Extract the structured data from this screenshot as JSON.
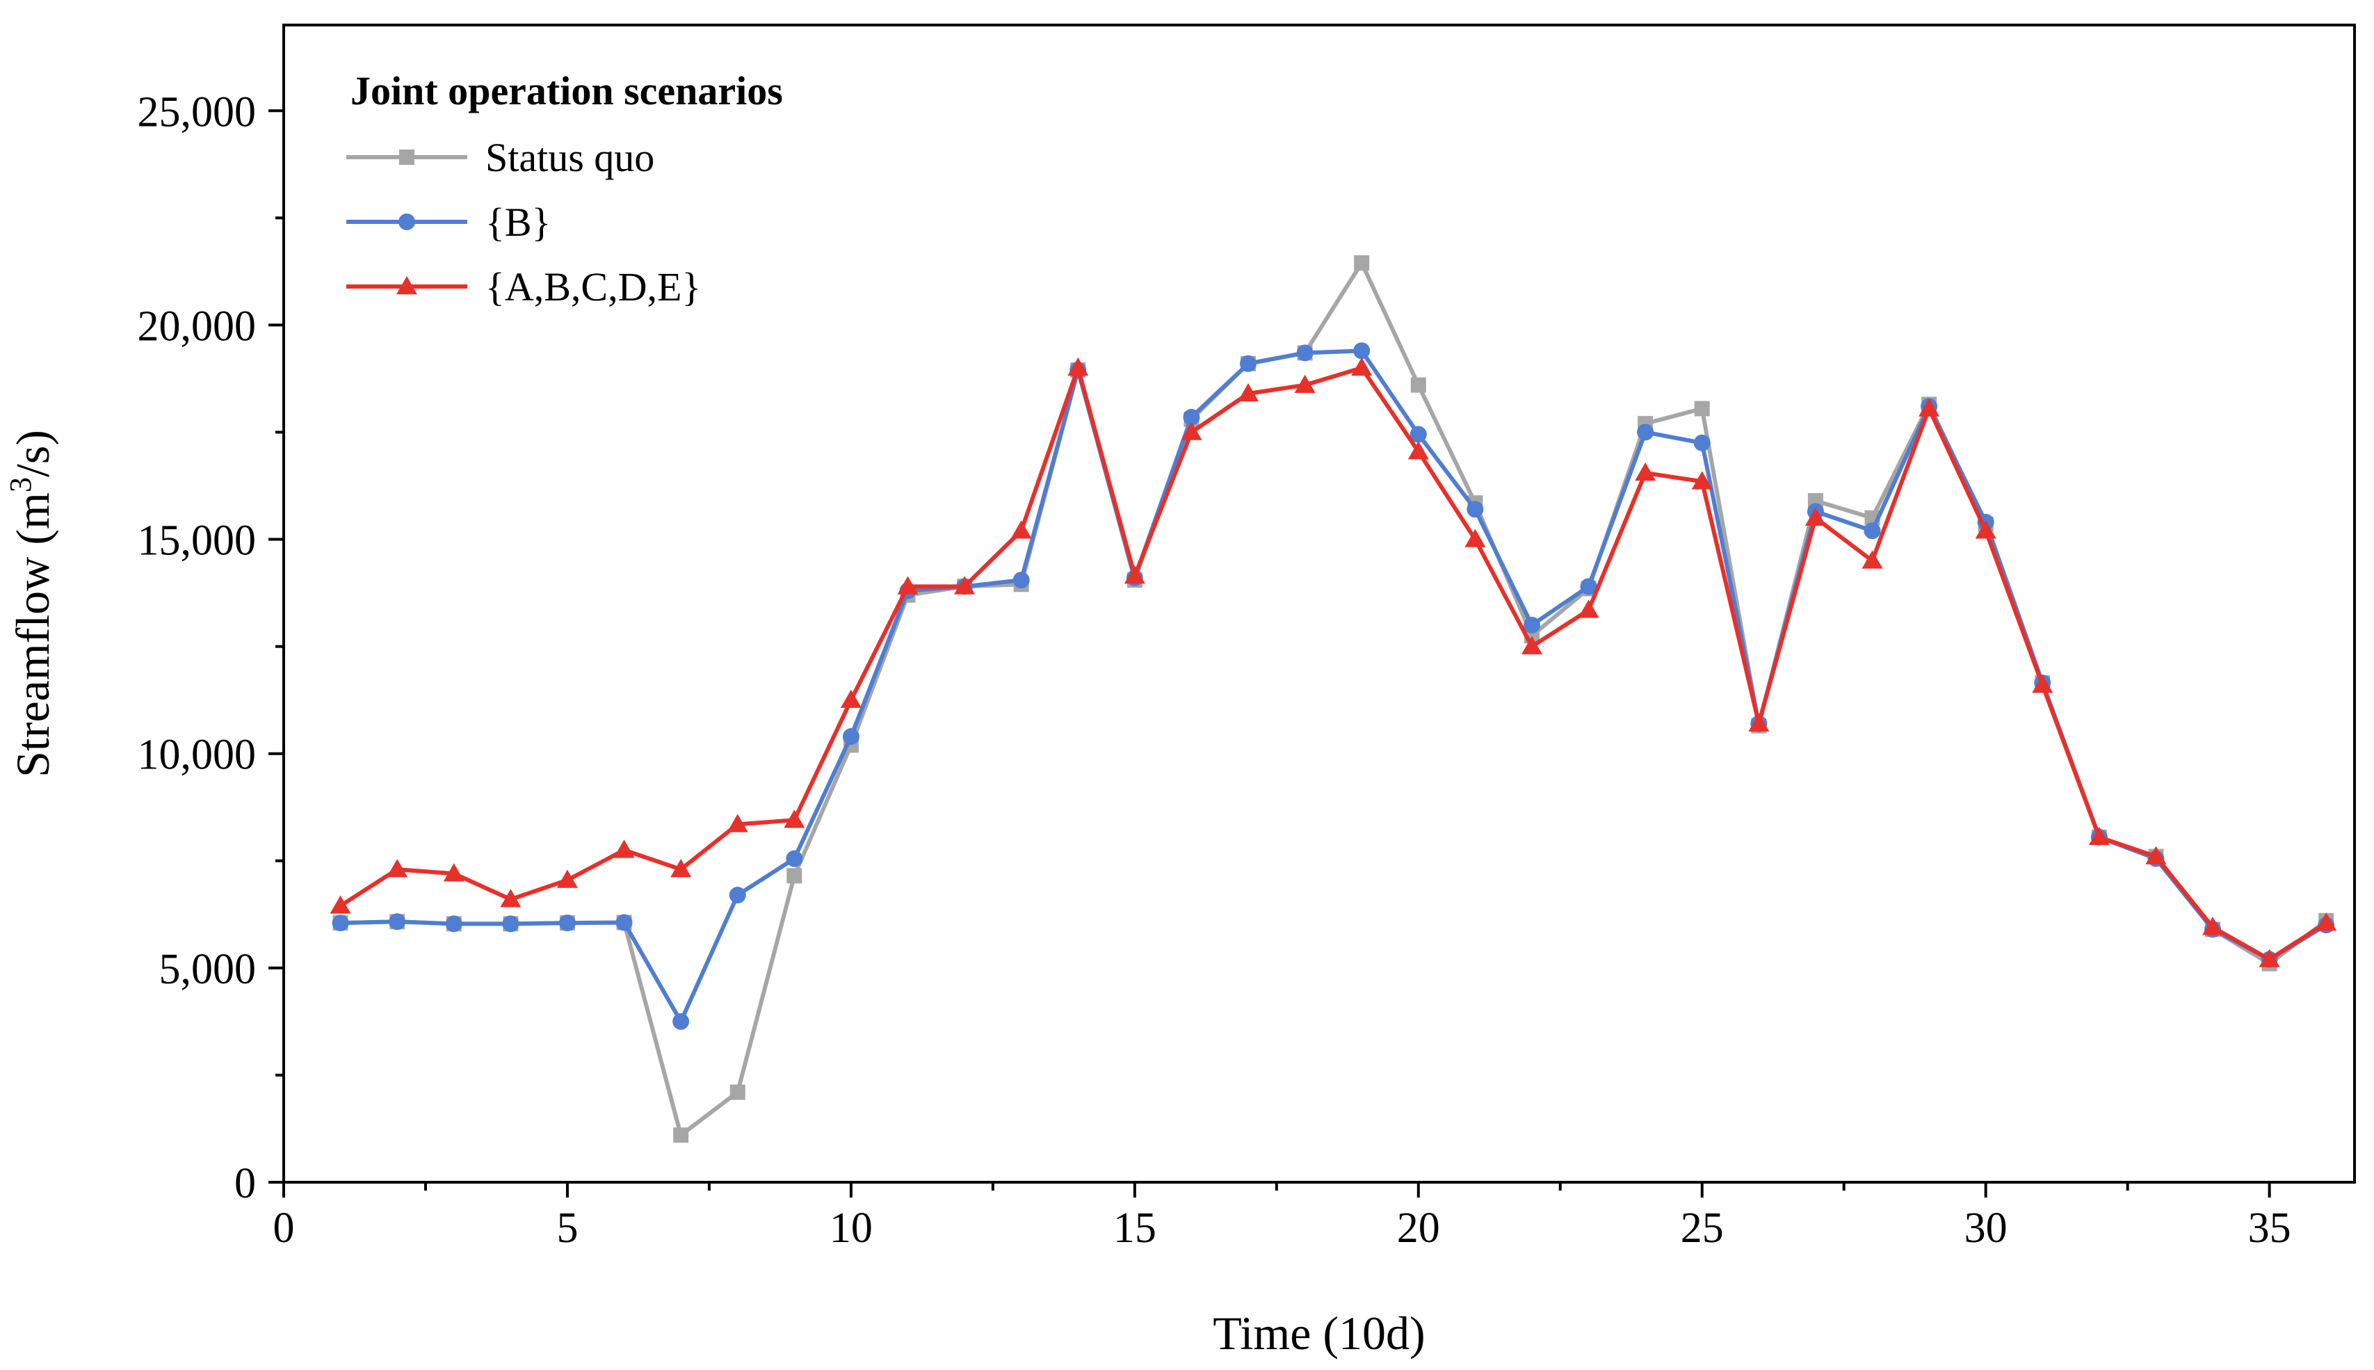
{
  "chart_data": {
    "type": "line",
    "title": "",
    "xlabel": "Time (10d)",
    "ylabel_prefix": "Streamflow (m",
    "ylabel_sup": "3",
    "ylabel_suffix": "/s)",
    "xlim": [
      0,
      36.5
    ],
    "ylim": [
      0,
      27000
    ],
    "x_ticks": [
      0,
      5,
      10,
      15,
      20,
      25,
      30,
      35
    ],
    "x_minor_ticks": [
      2.5,
      7.5,
      12.5,
      17.5,
      22.5,
      27.5,
      32.5
    ],
    "x_tick_labels": [
      "0",
      "5",
      "10",
      "15",
      "20",
      "25",
      "30",
      "35"
    ],
    "y_ticks": [
      0,
      5000,
      10000,
      15000,
      20000,
      25000
    ],
    "y_minor_ticks": [
      2500,
      7500,
      12500,
      17500,
      22500
    ],
    "y_tick_labels": [
      "0",
      "5,000",
      "10,000",
      "15,000",
      "20,000",
      "25,000"
    ],
    "grid": false,
    "legend_position": "top-left",
    "legend_title": "Joint operation scenarios",
    "x": [
      1,
      2,
      3,
      4,
      5,
      6,
      7,
      8,
      9,
      10,
      11,
      12,
      13,
      14,
      15,
      16,
      17,
      18,
      19,
      20,
      21,
      22,
      23,
      24,
      25,
      26,
      27,
      28,
      29,
      30,
      31,
      32,
      33,
      34,
      35,
      36
    ],
    "series": [
      {
        "name": "Status quo",
        "color": "#a6a6a6",
        "marker": "square",
        "values": [
          6050,
          6080,
          6030,
          6030,
          6050,
          6060,
          1100,
          2100,
          7150,
          10200,
          13700,
          13900,
          13950,
          18950,
          14050,
          17800,
          19100,
          19350,
          21450,
          18600,
          15850,
          12750,
          13850,
          17700,
          18050,
          10650,
          15900,
          15500,
          18150,
          15350,
          11650,
          8050,
          7600,
          5900,
          5100,
          6100
        ]
      },
      {
        "name": "{B}",
        "color": "#4f7ed2",
        "marker": "circle",
        "values": [
          6050,
          6080,
          6030,
          6030,
          6050,
          6060,
          3750,
          6700,
          7550,
          10400,
          13800,
          13900,
          14050,
          18950,
          14100,
          17850,
          19100,
          19350,
          19400,
          17450,
          15700,
          13000,
          13900,
          17500,
          17250,
          10700,
          15650,
          15200,
          18100,
          15400,
          11650,
          8050,
          7550,
          5900,
          5200,
          6000
        ]
      },
      {
        "name": "{A,B,C,D,E}",
        "color": "#e8302a",
        "marker": "triangle",
        "values": [
          6450,
          7300,
          7200,
          6600,
          7050,
          7750,
          7300,
          8350,
          8450,
          11250,
          13900,
          13900,
          15200,
          19000,
          14150,
          17500,
          18400,
          18600,
          19000,
          17050,
          15000,
          12500,
          13350,
          16550,
          16350,
          10700,
          15500,
          14500,
          18050,
          15200,
          11600,
          8050,
          7600,
          5950,
          5200,
          6050
        ]
      }
    ]
  }
}
